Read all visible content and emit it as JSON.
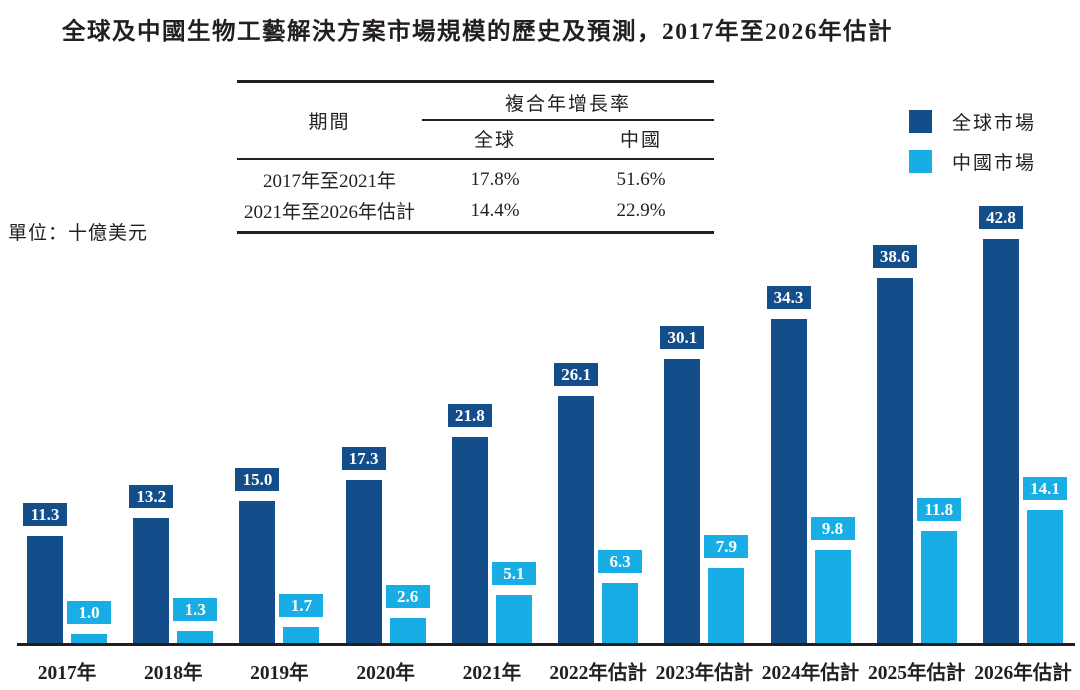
{
  "title": "全球及中國生物工藝解決方案市場規模的歷史及預測，2017年至2026年估計",
  "unit_label": "單位：十億美元",
  "cagr_table": {
    "period_header": "期間",
    "cagr_header": "複合年增長率",
    "columns": {
      "global": "全球",
      "china": "中國"
    },
    "rows": [
      {
        "period": "2017年至2021年",
        "global": "17.8%",
        "china": "51.6%"
      },
      {
        "period": "2021年至2026年估計",
        "global": "14.4%",
        "china": "22.9%"
      }
    ]
  },
  "legend": {
    "items": [
      {
        "label": "全球市場",
        "color": "#134E8A"
      },
      {
        "label": "中國市場",
        "color": "#18AEE5"
      }
    ]
  },
  "colors": {
    "global_bar": "#134E8A",
    "china_bar": "#18AEE5",
    "axis_line": "#231F20",
    "text": "#231F20",
    "value_label_text": "#FFFFFF"
  },
  "chart_data": {
    "type": "bar",
    "categories": [
      "2017年",
      "2018年",
      "2019年",
      "2020年",
      "2021年",
      "2022年估計",
      "2023年估計",
      "2024年估計",
      "2025年估計",
      "2026年估計"
    ],
    "series": [
      {
        "name": "全球市場",
        "color": "#134E8A",
        "values": [
          11.3,
          13.2,
          15.0,
          17.3,
          21.8,
          26.1,
          30.1,
          34.3,
          38.6,
          42.8
        ]
      },
      {
        "name": "中國市場",
        "color": "#18AEE5",
        "values": [
          1.0,
          1.3,
          1.7,
          2.6,
          5.1,
          6.3,
          7.9,
          9.8,
          11.8,
          14.1
        ]
      }
    ],
    "title": "全球及中國生物工藝解決方案市場規模的歷史及預測，2017年至2026年估計",
    "xlabel": "",
    "ylabel": "單位：十億美元",
    "ylim": [
      0,
      45
    ],
    "grid": false,
    "legend_position": "top-right",
    "value_labels": true
  }
}
